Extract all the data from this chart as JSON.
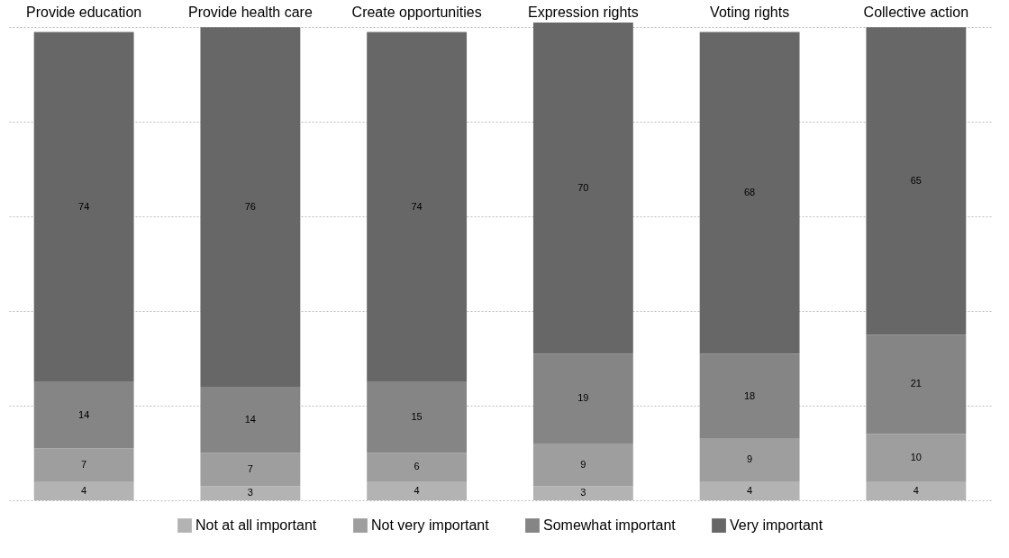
{
  "chart_data": {
    "type": "bar",
    "stacked": true,
    "data_labels": true,
    "grid": "y",
    "legend": "bottom",
    "tick_labels": "x",
    "categories": [
      "Provide education",
      "Provide health care",
      "Create opportunities",
      "Expression rights",
      "Voting rights",
      "Collective action"
    ],
    "ylim": [
      0,
      101
    ],
    "yticks": [
      {
        "value": 0,
        "label": null
      },
      {
        "value": 20,
        "label": null
      },
      {
        "value": 40,
        "label": null
      },
      {
        "value": 60,
        "label": null
      },
      {
        "value": 80,
        "label": null
      },
      {
        "value": 100,
        "label": null
      }
    ],
    "series": [
      {
        "name": "Not at all important",
        "color": "#b3b3b3",
        "values": [
          4,
          3,
          4,
          3,
          4,
          4
        ]
      },
      {
        "name": "Not very important",
        "color": "#9e9e9e",
        "values": [
          7,
          7,
          6,
          9,
          9,
          10
        ]
      },
      {
        "name": "Somewhat important",
        "color": "#858585",
        "values": [
          14,
          14,
          15,
          19,
          18,
          21
        ]
      },
      {
        "name": "Very important",
        "color": "#676767",
        "values": [
          74,
          76,
          74,
          70,
          68,
          65
        ]
      }
    ]
  }
}
